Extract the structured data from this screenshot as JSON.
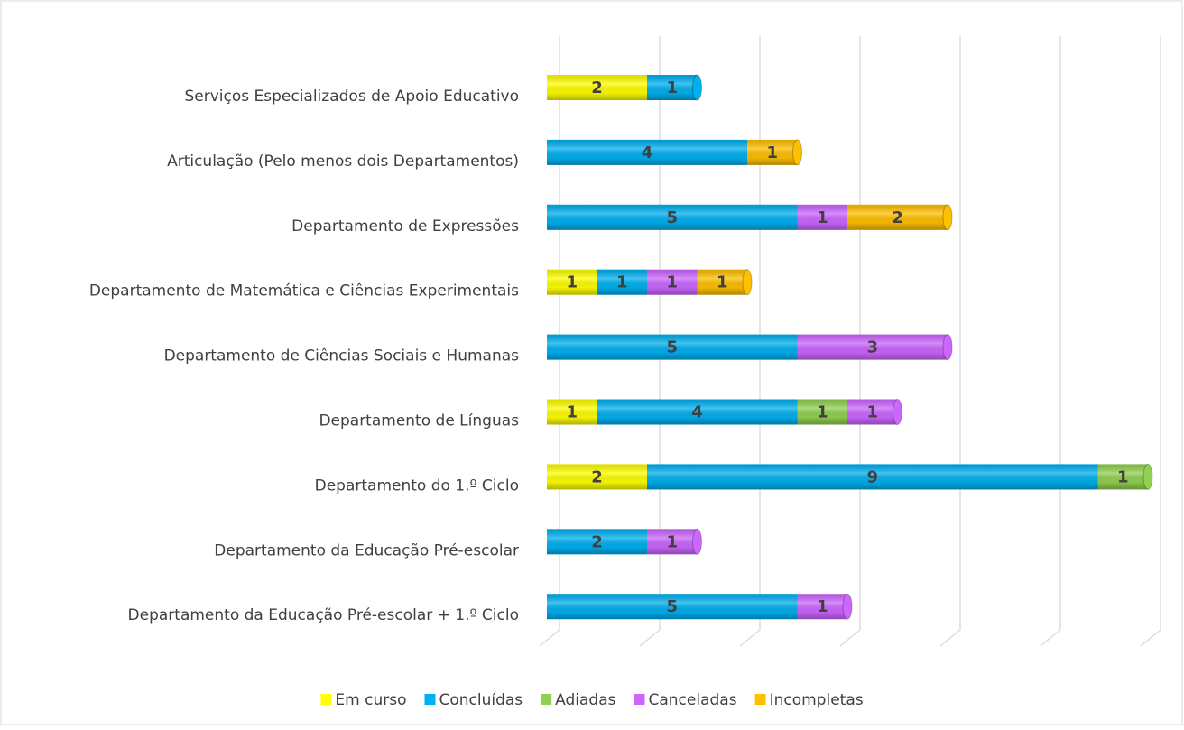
{
  "chart_data": {
    "type": "stacked-bar-horizontal",
    "categories": [
      "Serviços Especializados de Apoio Educativo",
      "Articulação (Pelo menos dois Departamentos)",
      "Departamento de Expressões",
      "Departamento de Matemática e Ciências Experimentais",
      "Departamento de Ciências Sociais e Humanas ",
      "Departamento de Línguas",
      "Departamento do 1.º Ciclo ",
      "Departamento da Educação Pré-escolar",
      "Departamento da Educação Pré-escolar + 1.º Ciclo"
    ],
    "series": [
      {
        "name": "Em curso",
        "color": "#ffff00",
        "values": [
          2,
          null,
          null,
          1,
          null,
          1,
          2,
          null,
          null
        ]
      },
      {
        "name": "Concluídas",
        "color": "#00b0f0",
        "values": [
          1,
          4,
          5,
          1,
          5,
          4,
          9,
          2,
          5
        ]
      },
      {
        "name": "Adiadas",
        "color": "#92d050",
        "values": [
          null,
          null,
          null,
          null,
          null,
          1,
          1,
          null,
          null
        ]
      },
      {
        "name": "Canceladas",
        "color": "#cc66ff",
        "values": [
          null,
          null,
          1,
          1,
          3,
          1,
          null,
          1,
          1
        ]
      },
      {
        "name": "Incompletas",
        "color": "#ffc000",
        "values": [
          null,
          1,
          2,
          1,
          null,
          null,
          null,
          null,
          null
        ]
      }
    ],
    "xlim": [
      0,
      12
    ],
    "xticks": [
      0,
      2,
      4,
      6,
      8,
      10,
      12
    ],
    "grid": true,
    "legend": "bottom"
  }
}
